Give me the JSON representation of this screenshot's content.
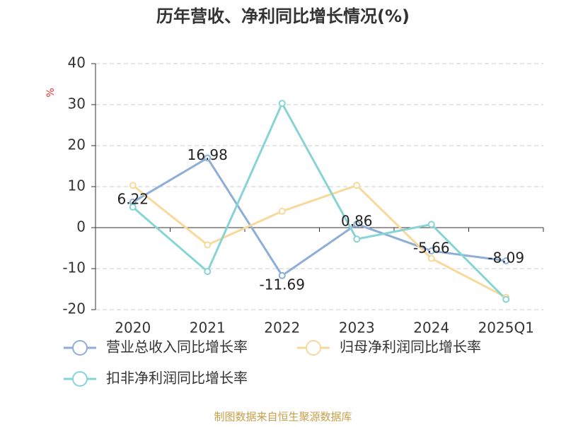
{
  "chart_data": {
    "type": "line",
    "title": "历年营收、净利同比增长情况(%)",
    "y_label": "%",
    "categories": [
      "2020",
      "2021",
      "2022",
      "2023",
      "2024",
      "2025Q1"
    ],
    "series": [
      {
        "name": "营业总收入同比增长率",
        "color": "#8eaed8",
        "show_labels": true,
        "values": [
          6.22,
          16.98,
          -11.69,
          0.86,
          -5.66,
          -8.09
        ]
      },
      {
        "name": "归母净利润同比增长率",
        "color": "#f8d99c",
        "show_labels": false,
        "values": [
          10.3,
          -4.2,
          4.0,
          10.3,
          -7.5,
          -17.0
        ]
      },
      {
        "name": "扣非净利润同比增长率",
        "color": "#86d4d4",
        "show_labels": false,
        "values": [
          5.0,
          -10.7,
          30.3,
          -2.8,
          0.8,
          -17.5
        ]
      }
    ],
    "ylim": [
      -20,
      40
    ],
    "yticks": [
      -20,
      -10,
      0,
      10,
      20,
      30,
      40
    ],
    "grid": true,
    "source": "制图数据来自恒生聚源数据库"
  }
}
